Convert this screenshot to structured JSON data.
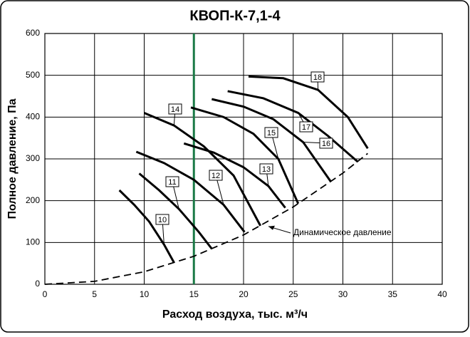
{
  "chart_data": {
    "type": "line",
    "title": "КВОП-К-7,1-4",
    "x_label": "Расход воздуха, тыс. м³/ч",
    "y_label": "Полное давление, Па",
    "xlim": [
      0,
      40
    ],
    "xticks": [
      0,
      5,
      10,
      15,
      20,
      25,
      30,
      35,
      40
    ],
    "ylim": [
      0,
      600
    ],
    "yticks": [
      0,
      100,
      200,
      300,
      400,
      500,
      600
    ],
    "grid": true,
    "vline": {
      "x": 15,
      "color": "#1b7a47"
    },
    "series": [
      {
        "name": "10",
        "color": "#000000",
        "x": [
          7.5,
          9,
          10.5,
          12,
          13
        ],
        "values": [
          225,
          190,
          150,
          95,
          52
        ]
      },
      {
        "name": "11",
        "color": "#000000",
        "x": [
          9.5,
          11.5,
          13.5,
          15.5,
          16.8
        ],
        "values": [
          265,
          225,
          180,
          125,
          85
        ]
      },
      {
        "name": "12",
        "color": "#000000",
        "x": [
          9.2,
          12,
          15,
          18,
          20.1
        ],
        "values": [
          317,
          290,
          250,
          190,
          125
        ]
      },
      {
        "name": "13",
        "color": "#000000",
        "x": [
          14,
          17,
          20,
          22.5,
          24.2
        ],
        "values": [
          337,
          315,
          280,
          235,
          183
        ]
      },
      {
        "name": "14",
        "color": "#000000",
        "x": [
          10,
          13,
          16,
          19,
          21.7
        ],
        "values": [
          410,
          380,
          330,
          260,
          140
        ]
      },
      {
        "name": "15",
        "color": "#000000",
        "x": [
          14.7,
          18,
          21,
          23.5,
          25.5
        ],
        "values": [
          423,
          400,
          360,
          300,
          193
        ]
      },
      {
        "name": "16",
        "color": "#000000",
        "x": [
          16.8,
          20,
          23,
          26,
          28.8
        ],
        "values": [
          443,
          425,
          395,
          340,
          245
        ]
      },
      {
        "name": "17",
        "color": "#000000",
        "x": [
          18.4,
          22,
          25.5,
          28.5,
          31.5
        ],
        "values": [
          462,
          445,
          410,
          355,
          293
        ]
      },
      {
        "name": "18",
        "color": "#000000",
        "x": [
          20.5,
          24,
          27.5,
          30.5,
          32.5
        ],
        "values": [
          497,
          493,
          465,
          400,
          325
        ]
      }
    ],
    "dynamic": {
      "label": "Динамическое давление",
      "color": "#000000",
      "x": [
        0,
        5,
        10,
        15,
        20,
        25,
        30,
        32.5
      ],
      "values": [
        0,
        7,
        30,
        67,
        118,
        185,
        266,
        313
      ]
    }
  }
}
